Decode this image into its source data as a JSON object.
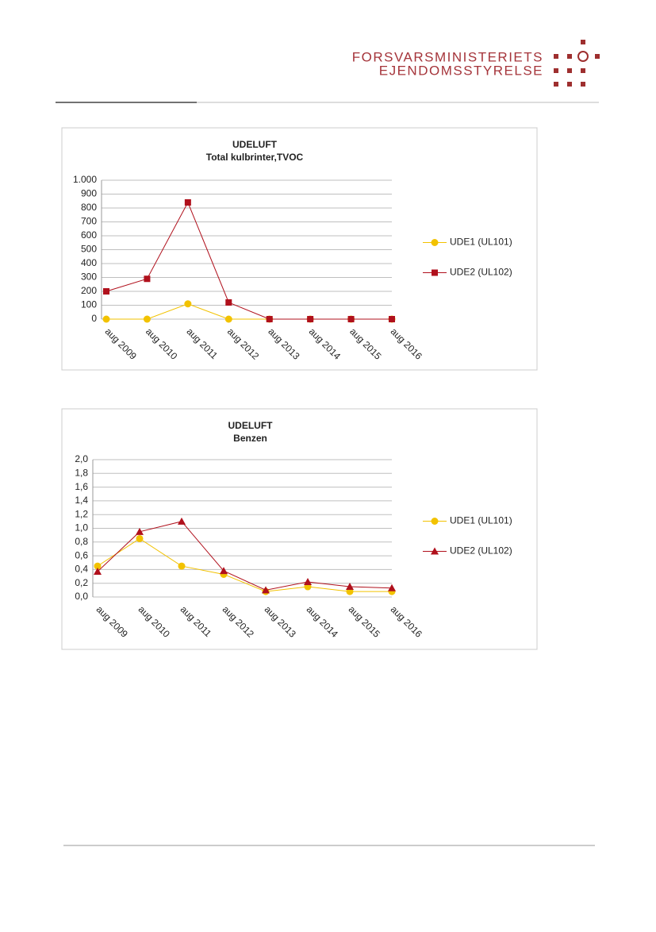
{
  "header": {
    "line1": "FORSVARSMINISTERIETS",
    "line2": "EJENDOMSSTYRELSE"
  },
  "chart_data": [
    {
      "type": "line",
      "title": "UDELUFT",
      "subtitle": "Total kulbrinter,TVOC",
      "categories": [
        "aug 2009",
        "aug 2010",
        "aug 2011",
        "aug 2012",
        "aug 2013",
        "aug 2014",
        "aug 2015",
        "aug 2016"
      ],
      "series": [
        {
          "name": "UDE1 (UL101)",
          "color": "#f2c200",
          "marker": "circle",
          "values": [
            0,
            0,
            110,
            0,
            0,
            0,
            0,
            0
          ]
        },
        {
          "name": "UDE2 (UL102)",
          "color": "#b0101c",
          "marker": "square",
          "values": [
            200,
            290,
            840,
            120,
            0,
            0,
            0,
            0
          ]
        }
      ],
      "ylim": [
        0,
        1000
      ],
      "yticks": [
        0,
        100,
        200,
        300,
        400,
        500,
        600,
        700,
        800,
        900,
        {
          "value": 1000,
          "label": "1.000"
        }
      ],
      "grid": true,
      "legend": "right"
    },
    {
      "type": "line",
      "title": "UDELUFT",
      "subtitle": "Benzen",
      "categories": [
        "aug 2009",
        "aug 2010",
        "aug 2011",
        "aug 2012",
        "aug 2013",
        "aug 2014",
        "aug 2015",
        "aug 2016"
      ],
      "series": [
        {
          "name": "UDE1 (UL101)",
          "color": "#f2c200",
          "marker": "circle",
          "values": [
            0.45,
            0.85,
            0.45,
            0.33,
            0.08,
            0.15,
            0.08,
            0.08
          ]
        },
        {
          "name": "UDE2 (UL102)",
          "color": "#b0101c",
          "marker": "triangle",
          "values": [
            0.37,
            0.95,
            1.1,
            0.38,
            0.1,
            0.22,
            0.15,
            0.13
          ]
        }
      ],
      "ylim": [
        0,
        2
      ],
      "yticks": [
        {
          "value": 0,
          "label": "0,0"
        },
        {
          "value": 0.2,
          "label": "0,2"
        },
        {
          "value": 0.4,
          "label": "0,4"
        },
        {
          "value": 0.6,
          "label": "0,6"
        },
        {
          "value": 0.8,
          "label": "0,8"
        },
        {
          "value": 1,
          "label": "1,0"
        },
        {
          "value": 1.2,
          "label": "1,2"
        },
        {
          "value": 1.4,
          "label": "1,4"
        },
        {
          "value": 1.6,
          "label": "1,6"
        },
        {
          "value": 1.8,
          "label": "1,8"
        },
        {
          "value": 2,
          "label": "2,0"
        }
      ],
      "grid": true,
      "legend": "right"
    }
  ]
}
